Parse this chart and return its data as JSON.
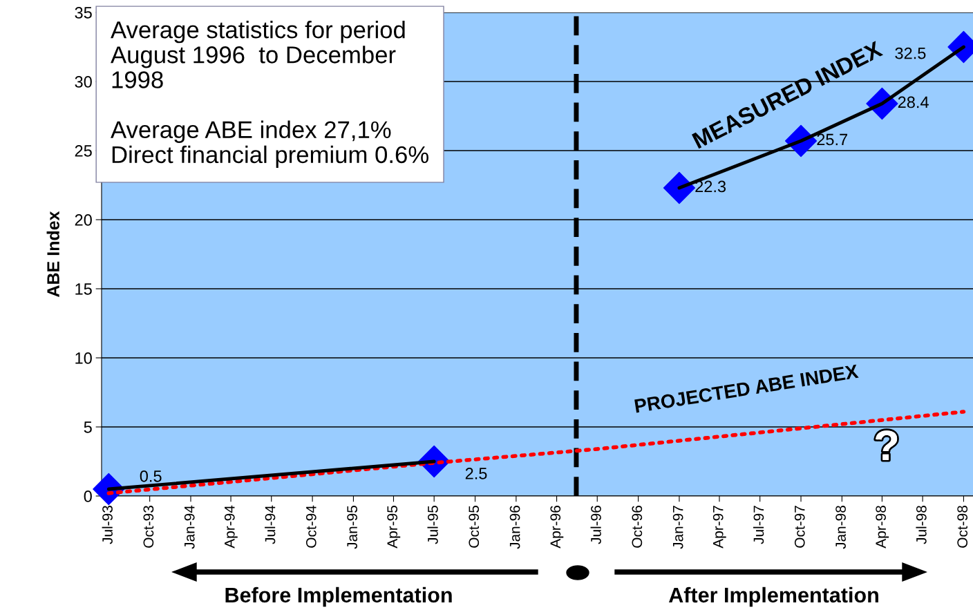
{
  "chart_data": {
    "type": "line",
    "ylabel": "ABE Index",
    "xlim": [
      "1993-06-15",
      "1998-10-22"
    ],
    "ylim": [
      0,
      35
    ],
    "yticks": [
      0,
      5,
      10,
      15,
      20,
      25,
      30,
      35
    ],
    "xticks": [
      {
        "value": "1993-07",
        "label": "Jul-93"
      },
      {
        "value": "1993-10",
        "label": "Oct-93"
      },
      {
        "value": "1994-01",
        "label": "Jan-94"
      },
      {
        "value": "1994-04",
        "label": "Apr-94"
      },
      {
        "value": "1994-07",
        "label": "Jul-94"
      },
      {
        "value": "1994-10",
        "label": "Oct-94"
      },
      {
        "value": "1995-01",
        "label": "Jan-95"
      },
      {
        "value": "1995-04",
        "label": "Apr-95"
      },
      {
        "value": "1995-07",
        "label": "Jul-95"
      },
      {
        "value": "1995-10",
        "label": "Oct-95"
      },
      {
        "value": "1996-01",
        "label": "Jan-96"
      },
      {
        "value": "1996-04",
        "label": "Apr-96"
      },
      {
        "value": "1996-07",
        "label": "Jul-96"
      },
      {
        "value": "1996-10",
        "label": "Oct-96"
      },
      {
        "value": "1997-01",
        "label": "Jan-97"
      },
      {
        "value": "1997-04",
        "label": "Apr-97"
      },
      {
        "value": "1997-07",
        "label": "Jul-97"
      },
      {
        "value": "1997-10",
        "label": "Oct-97"
      },
      {
        "value": "1998-01",
        "label": "Jan-98"
      },
      {
        "value": "1998-04",
        "label": "Apr-98"
      },
      {
        "value": "1998-07",
        "label": "Jul-98"
      },
      {
        "value": "1998-10",
        "label": "Oct-98"
      }
    ],
    "grid": "y",
    "series": [
      {
        "color": "#ff0000",
        "line_style": "dotted",
        "marker": "none",
        "x": [
          "1993-07",
          "1995-07",
          "1996-07",
          "1997-10",
          "1998-10"
        ],
        "values": [
          0.2,
          2.4,
          3.4,
          4.9,
          6.1
        ]
      },
      {
        "color": "#000000",
        "line_style": "solid",
        "marker": "none",
        "x": [
          "1993-07",
          "1995-07"
        ],
        "values": [
          0.5,
          2.5
        ]
      },
      {
        "color": "#000000",
        "line_style": "solid",
        "marker": "none",
        "x": [
          "1997-01",
          "1997-10",
          "1998-04",
          "1998-10"
        ],
        "values": [
          22.3,
          25.7,
          28.4,
          32.5
        ]
      },
      {
        "type": "scatter",
        "color": "#0000ff",
        "marker": "diamond",
        "x": [
          "1993-07",
          "1995-07",
          "1997-01",
          "1997-10",
          "1998-04",
          "1998-10"
        ],
        "values": [
          0.5,
          2.5,
          22.3,
          25.7,
          28.4,
          32.5
        ],
        "value_labels": [
          "0.5",
          "2.5",
          "22.3",
          "25.7",
          "28.4",
          "32.5"
        ]
      }
    ],
    "ref_lines": [
      {
        "axis": "x",
        "value": "1996-05-15",
        "color": "#000000",
        "line_style": "dashed"
      }
    ],
    "annotations": [
      "Average statistics for period\nAugust 1996  to December\n1998\n\nAverage ABE index 27,1%\nDirect financial premium 0.6%",
      "MEASURED INDEX",
      "PROJECTED ABE INDEX",
      "?",
      "Before Implementation",
      "After Implementation"
    ]
  }
}
